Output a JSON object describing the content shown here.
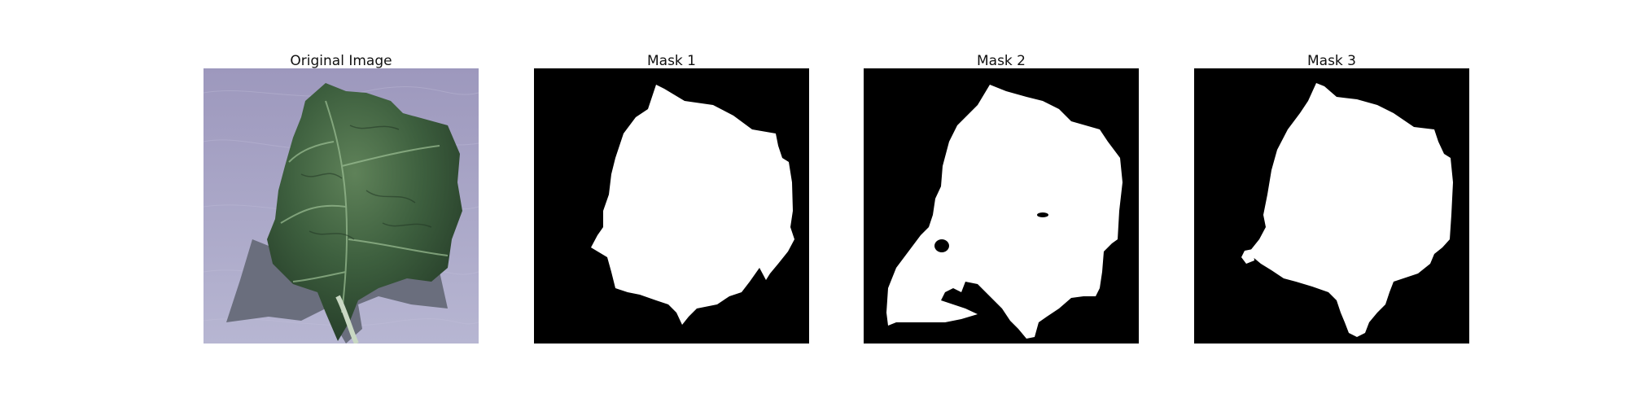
{
  "figure": {
    "panels": [
      {
        "title": "Original Image",
        "kind": "photo"
      },
      {
        "title": "Mask 1",
        "kind": "mask"
      },
      {
        "title": "Mask 2",
        "kind": "mask"
      },
      {
        "title": "Mask 3",
        "kind": "mask"
      }
    ]
  },
  "colors": {
    "background": "#ffffff",
    "mask_background": "#000000",
    "mask_foreground": "#ffffff",
    "photo_background": "#a7a3c8",
    "leaf_dark": "#2f4a30",
    "leaf_mid": "#4f7050",
    "leaf_light": "#8fae8a",
    "shadow": "#666a78"
  }
}
